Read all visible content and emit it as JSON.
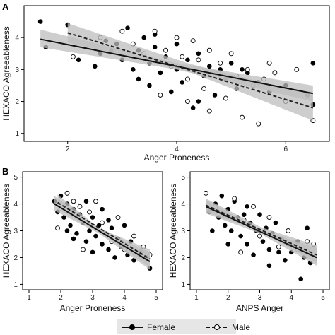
{
  "chart_data": [
    {
      "panel": "A",
      "type": "scatter",
      "xlabel": "Anger Proneness",
      "ylabel": "HEXACO Agreeableness",
      "xlim": [
        1.2,
        6.8
      ],
      "ylim": [
        0.75,
        5.0
      ],
      "xticks": [
        2,
        4,
        6
      ],
      "yticks": [
        1,
        2,
        3,
        4
      ],
      "grid": false,
      "series": [
        {
          "name": "Female",
          "marker": "filled-circle",
          "line": "solid",
          "fit": {
            "x": [
              1.5,
              6.5
            ],
            "y": [
              3.95,
              2.25
            ]
          },
          "ci": {
            "x": [
              1.5,
              4.0,
              6.5
            ],
            "upper": [
              4.25,
              3.2,
              2.5
            ],
            "lower": [
              3.7,
              3.0,
              2.0
            ]
          },
          "points": [
            [
              1.5,
              4.5
            ],
            [
              1.6,
              3.7
            ],
            [
              2.0,
              4.4
            ],
            [
              2.2,
              3.3
            ],
            [
              2.5,
              3.1
            ],
            [
              2.6,
              3.5
            ],
            [
              2.7,
              3.9
            ],
            [
              2.9,
              3.8
            ],
            [
              3.0,
              3.3
            ],
            [
              3.1,
              4.3
            ],
            [
              3.2,
              3.0
            ],
            [
              3.3,
              3.6
            ],
            [
              3.4,
              4.0
            ],
            [
              3.5,
              3.2
            ],
            [
              3.5,
              2.5
            ],
            [
              3.6,
              3.7
            ],
            [
              3.7,
              2.9
            ],
            [
              3.8,
              3.4
            ],
            [
              3.9,
              2.3
            ],
            [
              4.0,
              3.8
            ],
            [
              4.0,
              3.0
            ],
            [
              4.1,
              2.6
            ],
            [
              4.2,
              3.3
            ],
            [
              4.3,
              1.8
            ],
            [
              4.4,
              3.5
            ],
            [
              4.5,
              2.8
            ],
            [
              4.6,
              3.1
            ],
            [
              4.7,
              2.2
            ],
            [
              4.8,
              3.0
            ],
            [
              4.9,
              2.7
            ],
            [
              5.0,
              3.2
            ],
            [
              5.1,
              2.4
            ],
            [
              5.3,
              2.9
            ],
            [
              5.5,
              2.6
            ],
            [
              5.7,
              2.3
            ],
            [
              6.0,
              2.5
            ],
            [
              6.4,
              2.2
            ],
            [
              6.5,
              3.2
            ],
            [
              6.5,
              1.9
            ],
            [
              3.3,
              2.7
            ],
            [
              3.6,
              4.1
            ],
            [
              2.8,
              3.6
            ],
            [
              4.4,
              2.0
            ],
            [
              5.2,
              3.0
            ]
          ]
        },
        {
          "name": "Male",
          "marker": "open-circle",
          "line": "dashed",
          "fit": {
            "x": [
              2.0,
              6.5
            ],
            "y": [
              4.15,
              1.8
            ]
          },
          "ci": {
            "x": [
              2.0,
              4.2,
              6.5
            ],
            "upper": [
              4.45,
              3.2,
              2.2
            ],
            "lower": [
              3.85,
              2.95,
              1.4
            ]
          },
          "points": [
            [
              2.1,
              3.4
            ],
            [
              2.6,
              4.0
            ],
            [
              3.0,
              4.2
            ],
            [
              3.2,
              3.8
            ],
            [
              3.4,
              3.5
            ],
            [
              3.6,
              4.2
            ],
            [
              3.8,
              3.6
            ],
            [
              3.9,
              3.1
            ],
            [
              4.0,
              4.0
            ],
            [
              4.1,
              3.4
            ],
            [
              4.2,
              2.7
            ],
            [
              4.3,
              3.9
            ],
            [
              4.4,
              3.3
            ],
            [
              4.5,
              2.4
            ],
            [
              4.6,
              3.6
            ],
            [
              4.7,
              2.9
            ],
            [
              4.8,
              3.2
            ],
            [
              4.9,
              2.1
            ],
            [
              5.0,
              3.5
            ],
            [
              5.1,
              2.8
            ],
            [
              5.2,
              1.5
            ],
            [
              5.3,
              3.0
            ],
            [
              5.4,
              2.5
            ],
            [
              5.5,
              1.3
            ],
            [
              5.6,
              2.7
            ],
            [
              5.8,
              2.9
            ],
            [
              6.0,
              2.0
            ],
            [
              6.2,
              3.0
            ],
            [
              6.5,
              1.4
            ],
            [
              3.7,
              2.2
            ],
            [
              4.2,
              2.0
            ],
            [
              4.6,
              1.7
            ],
            [
              5.7,
              3.2
            ],
            [
              3.5,
              3.3
            ]
          ]
        }
      ]
    },
    {
      "panel": "B",
      "subpanel": "left",
      "type": "scatter",
      "xlabel": "Anger Proneness",
      "ylabel": "HEXACO Agreeableness",
      "xlim": [
        0.8,
        5.2
      ],
      "ylim": [
        0.8,
        5.2
      ],
      "xticks": [
        1,
        2,
        3,
        4,
        5
      ],
      "yticks": [
        1,
        2,
        3,
        4,
        5
      ],
      "grid": false,
      "series": [
        {
          "name": "Female",
          "marker": "filled-circle",
          "line": "solid",
          "fit": {
            "x": [
              1.8,
              4.8
            ],
            "y": [
              4.0,
              1.85
            ]
          },
          "ci": {
            "x": [
              1.8,
              3.2,
              4.8
            ],
            "upper": [
              4.3,
              3.05,
              2.2
            ],
            "lower": [
              3.75,
              2.9,
              1.55
            ]
          },
          "points": [
            [
              1.8,
              4.1
            ],
            [
              1.9,
              3.7
            ],
            [
              2.0,
              4.3
            ],
            [
              2.1,
              3.5
            ],
            [
              2.2,
              4.0
            ],
            [
              2.3,
              3.2
            ],
            [
              2.4,
              3.8
            ],
            [
              2.5,
              2.9
            ],
            [
              2.6,
              3.6
            ],
            [
              2.7,
              3.3
            ],
            [
              2.8,
              4.1
            ],
            [
              2.8,
              2.6
            ],
            [
              2.9,
              3.0
            ],
            [
              3.0,
              3.5
            ],
            [
              3.0,
              2.2
            ],
            [
              3.1,
              2.8
            ],
            [
              3.2,
              3.2
            ],
            [
              3.3,
              2.5
            ],
            [
              3.3,
              3.8
            ],
            [
              3.4,
              2.9
            ],
            [
              3.5,
              2.3
            ],
            [
              3.6,
              3.1
            ],
            [
              3.7,
              2.0
            ],
            [
              3.8,
              2.7
            ],
            [
              3.9,
              2.4
            ],
            [
              4.0,
              3.2
            ],
            [
              4.1,
              2.1
            ],
            [
              4.2,
              2.6
            ],
            [
              4.3,
              1.9
            ],
            [
              4.5,
              2.2
            ],
            [
              4.7,
              2.0
            ],
            [
              4.8,
              1.6
            ],
            [
              2.4,
              2.7
            ],
            [
              3.5,
              3.4
            ],
            [
              2.2,
              3.0
            ]
          ]
        },
        {
          "name": "Male",
          "marker": "open-circle",
          "line": "dashed",
          "fit": {
            "x": [
              1.9,
              4.8
            ],
            "y": [
              4.05,
              1.95
            ]
          },
          "ci": {
            "x": [
              1.9,
              3.2,
              4.8
            ],
            "upper": [
              4.35,
              3.1,
              2.3
            ],
            "lower": [
              3.8,
              2.95,
              1.65
            ]
          },
          "points": [
            [
              1.9,
              3.1
            ],
            [
              2.2,
              4.4
            ],
            [
              2.4,
              4.1
            ],
            [
              2.6,
              3.9
            ],
            [
              2.9,
              3.7
            ],
            [
              3.1,
              4.1
            ],
            [
              3.3,
              3.3
            ],
            [
              3.6,
              2.6
            ],
            [
              3.8,
              3.5
            ],
            [
              4.0,
              2.3
            ],
            [
              4.3,
              2.8
            ],
            [
              4.6,
              2.4
            ],
            [
              4.8,
              2.1
            ],
            [
              2.7,
              2.3
            ]
          ]
        }
      ]
    },
    {
      "panel": "B",
      "subpanel": "right",
      "type": "scatter",
      "xlabel": "ANPS Anger",
      "ylabel": "HEXACO Agreeableness",
      "xlim": [
        0.8,
        5.2
      ],
      "ylim": [
        0.8,
        5.2
      ],
      "xticks": [
        1,
        2,
        3,
        4,
        5
      ],
      "yticks": [
        1,
        2,
        3,
        4,
        5
      ],
      "grid": false,
      "series": [
        {
          "name": "Female",
          "marker": "filled-circle",
          "line": "solid",
          "fit": {
            "x": [
              1.3,
              4.8
            ],
            "y": [
              3.9,
              2.0
            ]
          },
          "ci": {
            "x": [
              1.3,
              3.0,
              4.8
            ],
            "upper": [
              4.15,
              3.05,
              2.35
            ],
            "lower": [
              3.65,
              2.9,
              1.7
            ]
          },
          "points": [
            [
              1.4,
              3.7
            ],
            [
              1.6,
              4.0
            ],
            [
              1.7,
              3.5
            ],
            [
              1.8,
              4.3
            ],
            [
              1.9,
              3.2
            ],
            [
              2.0,
              3.8
            ],
            [
              2.1,
              3.0
            ],
            [
              2.2,
              4.1
            ],
            [
              2.3,
              3.5
            ],
            [
              2.4,
              2.8
            ],
            [
              2.5,
              3.6
            ],
            [
              2.6,
              2.5
            ],
            [
              2.7,
              3.3
            ],
            [
              2.8,
              2.1
            ],
            [
              2.9,
              3.0
            ],
            [
              3.0,
              3.6
            ],
            [
              3.1,
              2.6
            ],
            [
              3.2,
              3.1
            ],
            [
              3.3,
              2.3
            ],
            [
              3.4,
              2.9
            ],
            [
              3.5,
              3.3
            ],
            [
              3.6,
              2.2
            ],
            [
              3.7,
              2.7
            ],
            [
              3.8,
              1.9
            ],
            [
              3.9,
              2.5
            ],
            [
              4.0,
              2.2
            ],
            [
              4.2,
              2.6
            ],
            [
              4.3,
              1.2
            ],
            [
              4.4,
              2.0
            ],
            [
              4.6,
              1.8
            ],
            [
              2.0,
              2.5
            ],
            [
              1.5,
              3.0
            ],
            [
              3.3,
              1.7
            ],
            [
              2.6,
              3.9
            ],
            [
              4.5,
              3.1
            ]
          ]
        },
        {
          "name": "Male",
          "marker": "open-circle",
          "line": "dashed",
          "fit": {
            "x": [
              1.3,
              4.8
            ],
            "y": [
              3.95,
              2.1
            ]
          },
          "ci": {
            "x": [
              1.3,
              3.0,
              4.8
            ],
            "upper": [
              4.2,
              3.15,
              2.45
            ],
            "lower": [
              3.7,
              3.0,
              1.8
            ]
          },
          "points": [
            [
              1.3,
              4.4
            ],
            [
              1.6,
              3.9
            ],
            [
              1.9,
              3.6
            ],
            [
              2.2,
              4.2
            ],
            [
              2.5,
              3.4
            ],
            [
              2.8,
              3.9
            ],
            [
              3.0,
              2.8
            ],
            [
              3.3,
              3.5
            ],
            [
              3.6,
              2.4
            ],
            [
              3.9,
              3.0
            ],
            [
              4.2,
              2.3
            ],
            [
              4.5,
              2.6
            ],
            [
              4.7,
              2.5
            ],
            [
              2.4,
              2.2
            ]
          ]
        }
      ]
    }
  ],
  "panels": {
    "a": "A",
    "b": "B"
  },
  "legend": {
    "placement": "bottom-center",
    "items": [
      {
        "label": "Female",
        "marker": "filled-circle",
        "line": "solid"
      },
      {
        "label": "Male",
        "marker": "open-circle",
        "line": "dashed"
      }
    ]
  },
  "colors": {
    "female_point": "#000000",
    "female_line": "#111111",
    "male_line": "#222222",
    "ci_band": "#bdbdbd",
    "panel_bg": "#ffffff",
    "legend_bg": "#e6e6e6"
  }
}
